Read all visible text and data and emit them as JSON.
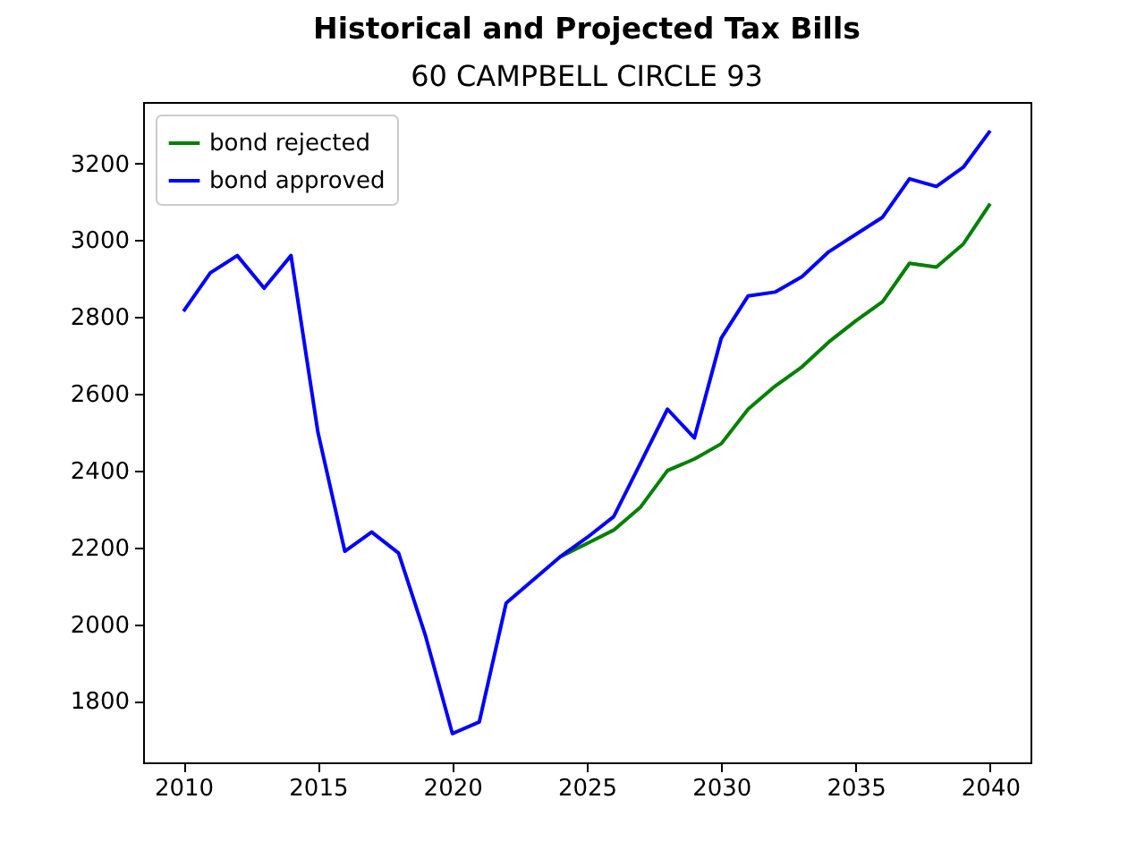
{
  "chart_data": {
    "type": "line",
    "title": "Historical and Projected Tax Bills",
    "subtitle": "60 CAMPBELL CIRCLE  93",
    "x": [
      2010,
      2011,
      2012,
      2013,
      2014,
      2015,
      2016,
      2017,
      2018,
      2019,
      2020,
      2021,
      2022,
      2023,
      2024,
      2025,
      2026,
      2027,
      2028,
      2029,
      2030,
      2031,
      2032,
      2033,
      2034,
      2035,
      2036,
      2037,
      2038,
      2039,
      2040
    ],
    "xlim": [
      2008.5,
      2041.5
    ],
    "ylim": [
      1640,
      3360
    ],
    "xticks": [
      2010,
      2015,
      2020,
      2025,
      2030,
      2035,
      2040
    ],
    "yticks": [
      1800,
      2000,
      2200,
      2400,
      2600,
      2800,
      3000,
      3200
    ],
    "grid": false,
    "legend": "top left",
    "series": [
      {
        "name": "bond rejected",
        "color": "#008000",
        "values": [
          null,
          null,
          null,
          null,
          null,
          null,
          null,
          null,
          null,
          null,
          null,
          null,
          null,
          null,
          2175,
          2210,
          2245,
          2305,
          2400,
          2430,
          2470,
          2560,
          2620,
          2670,
          2735,
          2790,
          2840,
          2940,
          2930,
          2990,
          3095
        ]
      },
      {
        "name": "bond approved",
        "color": "#0000ff",
        "values": [
          2815,
          2915,
          2960,
          2875,
          2960,
          2500,
          2190,
          2240,
          2185,
          1970,
          1715,
          1745,
          2055,
          2115,
          2175,
          2225,
          2280,
          2420,
          2560,
          2485,
          2745,
          2855,
          2865,
          2905,
          2970,
          3015,
          3060,
          3160,
          3140,
          3190,
          3285
        ]
      }
    ]
  }
}
